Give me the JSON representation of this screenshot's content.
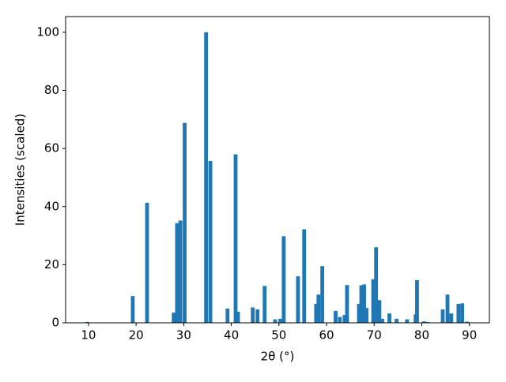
{
  "chart_data": {
    "type": "bar",
    "color": "#1f77b4",
    "xlabel": "2θ (°)",
    "ylabel": "Intensities (scaled)",
    "x": [
      9.7,
      19.3,
      22.3,
      27.9,
      28.6,
      29.3,
      30.2,
      34.7,
      35.6,
      39.2,
      40.9,
      41.4,
      44.5,
      45.5,
      47.0,
      49.2,
      50.3,
      51.0,
      54.0,
      55.3,
      57.8,
      58.3,
      59.1,
      61.9,
      62.8,
      63.8,
      64.3,
      66.8,
      67.3,
      67.9,
      68.4,
      69.8,
      70.4,
      71.1,
      71.7,
      73.2,
      74.7,
      76.9,
      78.7,
      79.0,
      80.5,
      81.2,
      84.4,
      85.4,
      86.2,
      87.7,
      88.5,
      89.5
    ],
    "values": [
      0.3,
      9.2,
      41.3,
      3.5,
      34.3,
      35.2,
      68.8,
      100,
      55.7,
      4.9,
      58,
      3.8,
      5.3,
      4.6,
      12.7,
      1.2,
      1.4,
      29.8,
      16,
      32.2,
      6.5,
      9.7,
      19.5,
      4.1,
      2,
      2.7,
      13,
      6.5,
      12.9,
      13.2,
      5.1,
      15,
      26,
      7.8,
      1.4,
      3.2,
      1.4,
      1.2,
      2.9,
      14.7,
      0.5,
      0.3,
      4.6,
      9.7,
      3.2,
      6.5,
      6.7,
      0.4
    ],
    "xlim": [
      5.2,
      94.2
    ],
    "ylim": [
      0,
      105.4
    ],
    "xticks": [
      10,
      20,
      30,
      40,
      50,
      60,
      70,
      80,
      90
    ],
    "yticks": [
      0,
      20,
      40,
      60,
      80,
      100
    ]
  }
}
